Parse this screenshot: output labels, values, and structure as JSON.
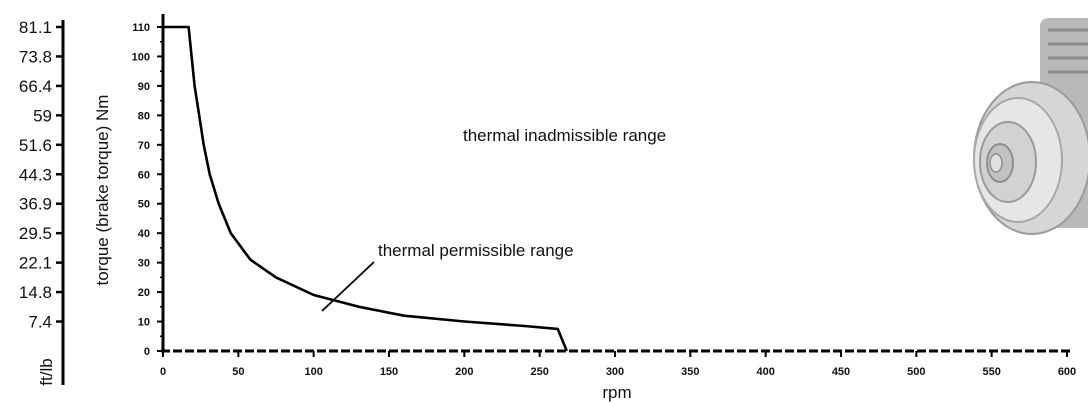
{
  "chart_data": {
    "type": "line",
    "x_axis": {
      "label": "rpm",
      "range": [
        0,
        600
      ],
      "ticks": [
        0,
        50,
        100,
        150,
        200,
        250,
        300,
        350,
        400,
        450,
        500,
        550,
        600
      ]
    },
    "y_axis_nm": {
      "label": "torque (brake torque) Nm",
      "range": [
        0,
        110
      ],
      "ticks": [
        0,
        10,
        20,
        30,
        40,
        50,
        60,
        70,
        80,
        90,
        100,
        110
      ]
    },
    "y_axis_ftlb": {
      "label": "ft/lb",
      "ticks": [
        "7.4",
        "14.8",
        "22.1",
        "29.5",
        "36.9",
        "44.3",
        "51.6",
        "59",
        "66.4",
        "73.8",
        "81.1"
      ],
      "tick_values_nm": [
        10,
        20,
        30,
        40,
        50,
        60,
        70,
        80,
        90,
        100,
        110
      ]
    },
    "series": [
      {
        "points": [
          [
            0,
            110
          ],
          [
            17,
            110
          ],
          [
            19,
            100
          ],
          [
            21,
            90
          ],
          [
            24,
            80
          ],
          [
            27,
            70
          ],
          [
            31,
            60
          ],
          [
            37,
            50
          ],
          [
            45,
            40
          ],
          [
            58,
            31
          ],
          [
            75,
            25
          ],
          [
            100,
            19
          ],
          [
            130,
            15
          ],
          [
            160,
            12
          ],
          [
            200,
            10
          ],
          [
            240,
            8.5
          ],
          [
            262,
            7.5
          ],
          [
            268,
            0
          ]
        ]
      }
    ],
    "annotations": [
      {
        "text": "thermal inadmissible range"
      },
      {
        "text": "thermal permissible range"
      }
    ],
    "grid": false,
    "legend": "none"
  },
  "colors": {
    "line": "#000000",
    "text": "#111111",
    "motor_body": "#cfcfcf",
    "motor_shadow": "#9a9a9a"
  }
}
